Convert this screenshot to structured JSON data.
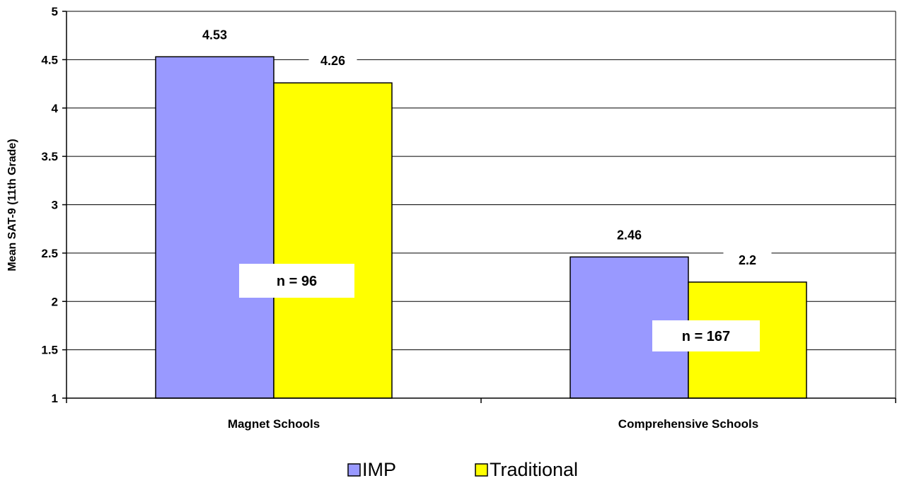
{
  "chart_data": {
    "type": "bar",
    "categories": [
      "Magnet Schools",
      "Comprehensive Schools"
    ],
    "series": [
      {
        "name": "IMP",
        "values": [
          4.53,
          2.46
        ],
        "color": "#9999ff"
      },
      {
        "name": "Traditional",
        "values": [
          4.26,
          2.2
        ],
        "color": "#ffff00"
      }
    ],
    "value_labels": [
      [
        "4.53",
        "2.46"
      ],
      [
        "4.26",
        "2.2"
      ]
    ],
    "ylabel": "Mean SAT-9 (11th Grade)",
    "ylim": [
      1,
      5
    ],
    "yticks": [
      "1",
      "1.5",
      "2",
      "2.5",
      "3",
      "3.5",
      "4",
      "4.5",
      "5"
    ],
    "grid": true,
    "legend_position": "bottom",
    "annotations": [
      "n = 96",
      "n = 167"
    ]
  }
}
